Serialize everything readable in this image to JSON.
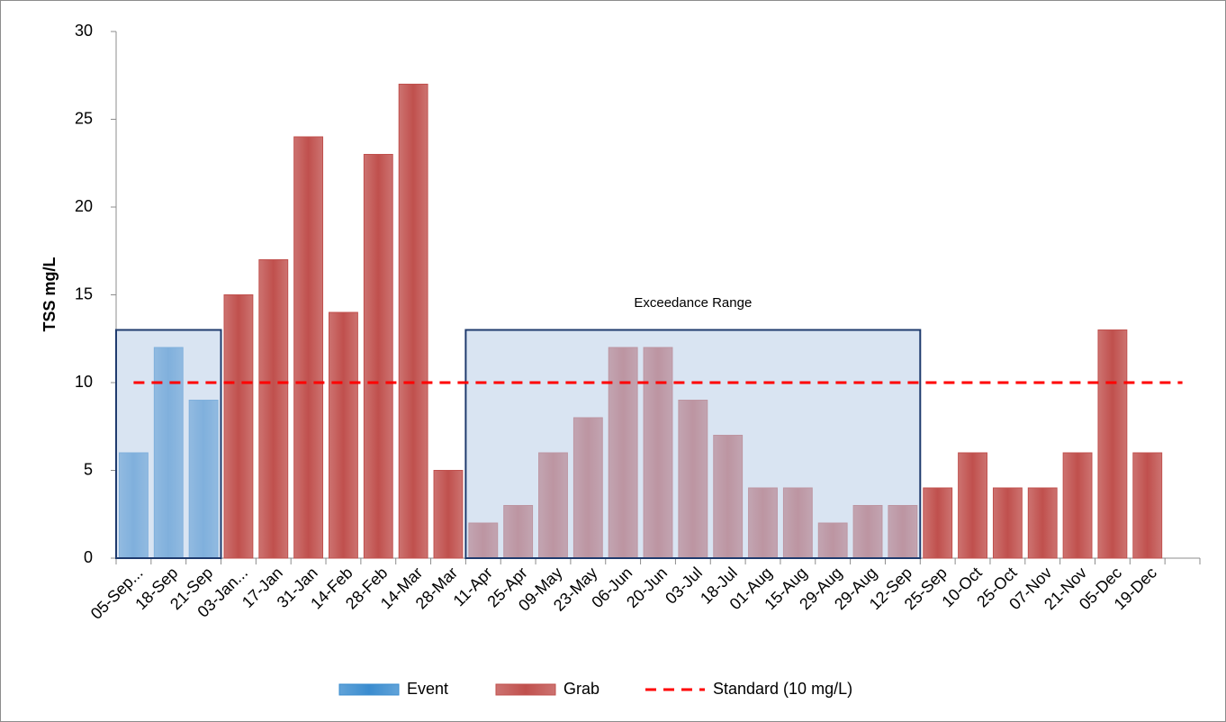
{
  "chart_data": {
    "type": "bar",
    "y_label": "TSS mg/L",
    "annotation": "Exceedance Range",
    "categories": [
      "05-Sep...",
      "18-Sep",
      "21-Sep",
      "03-Jan...",
      "17-Jan",
      "31-Jan",
      "14-Feb",
      "28-Feb",
      "14-Mar",
      "28-Mar",
      "11-Apr",
      "25-Apr",
      "09-May",
      "23-May",
      "06-Jun",
      "20-Jun",
      "03-Jul",
      "18-Jul",
      "01-Aug",
      "15-Aug",
      "29-Aug",
      "29-Aug",
      "12-Sep",
      "25-Sep",
      "10-Oct",
      "25-Oct",
      "07-Nov",
      "21-Nov",
      "05-Dec",
      "19-Dec",
      null
    ],
    "series": [
      {
        "name": "Event",
        "type": "bar",
        "color": "#3a8ccf",
        "values": [
          6,
          12,
          9,
          null,
          null,
          null,
          null,
          null,
          null,
          null,
          null,
          null,
          null,
          null,
          null,
          null,
          null,
          null,
          null,
          null,
          null,
          null,
          null,
          null,
          null,
          null,
          null,
          null,
          null,
          null,
          null
        ]
      },
      {
        "name": "Grab",
        "type": "bar",
        "color": "#c0504d",
        "values": [
          null,
          null,
          null,
          15,
          17,
          24,
          14,
          23,
          27,
          5,
          2,
          3,
          6,
          8,
          12,
          12,
          9,
          7,
          4,
          4,
          2,
          3,
          3,
          4,
          6,
          4,
          4,
          6,
          13,
          6,
          null
        ]
      },
      {
        "name": "Standard (10 mg/L)",
        "type": "line",
        "color": "#ff0000",
        "dashed": true,
        "values": [
          10,
          10,
          10,
          10,
          10,
          10,
          10,
          10,
          10,
          10,
          10,
          10,
          10,
          10,
          10,
          10,
          10,
          10,
          10,
          10,
          10,
          10,
          10,
          10,
          10,
          10,
          10,
          10,
          10,
          10,
          10
        ]
      }
    ],
    "shaded_ranges": [
      {
        "start": 0,
        "end": 2,
        "top": 13
      },
      {
        "start": 10,
        "end": 22,
        "top": 13
      }
    ],
    "ylim": [
      0,
      30
    ],
    "yticks": [
      0,
      5,
      10,
      15,
      20,
      25,
      30
    ],
    "grid": false,
    "legend": "bottom"
  }
}
